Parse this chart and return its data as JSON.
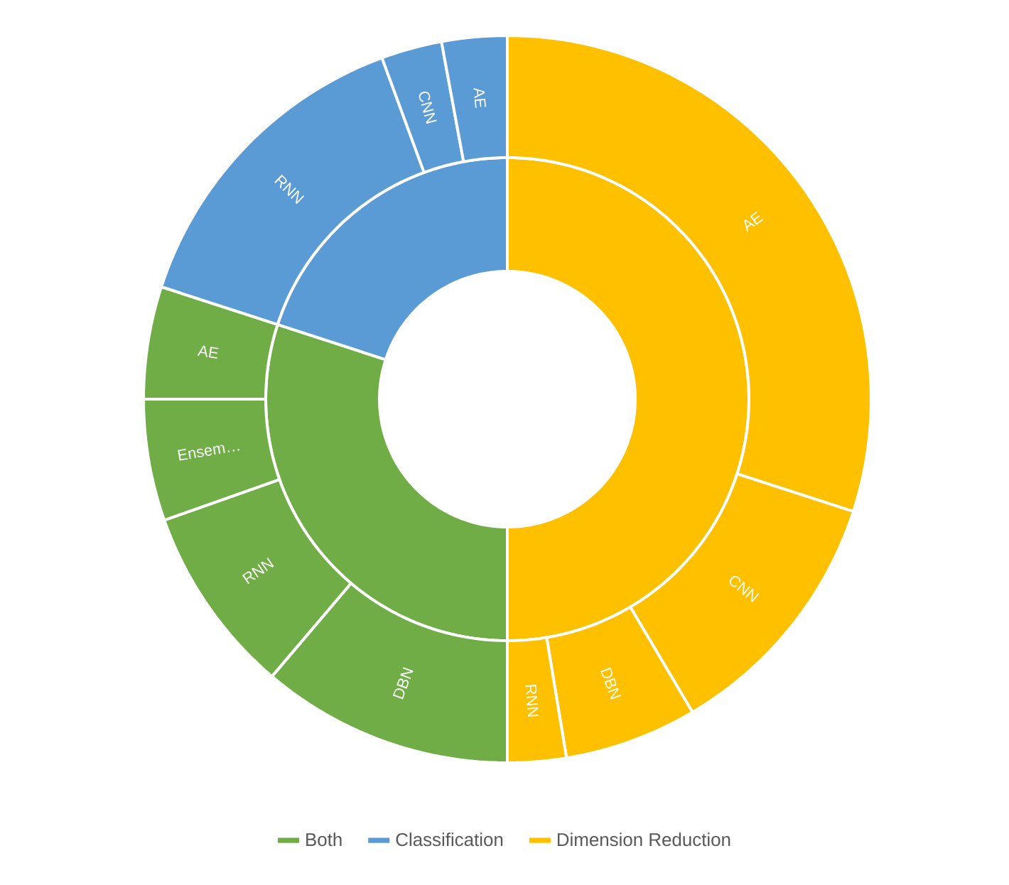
{
  "chart_data": [
    {
      "type": "donut",
      "categories": [
        "Both",
        "Classification",
        "Dimension Reduction"
      ],
      "values": [
        30,
        20,
        50
      ],
      "colors": [
        "#70ad47",
        "#5b9bd5",
        "#ffc000"
      ],
      "legend": "bottom"
    },
    {
      "type": "donut",
      "categories": [
        "DBN",
        "RNN",
        "Ensem…",
        "AE",
        "RNN",
        "CNN",
        "AE",
        "AE",
        "CNN",
        "DBN",
        "RNN"
      ],
      "values": [
        11.2,
        8.4,
        5.4,
        5.0,
        14.4,
        2.7,
        2.9,
        30,
        11.5,
        5.9,
        2.6
      ],
      "colors": [
        "#70ad47",
        "#70ad47",
        "#70ad47",
        "#70ad47",
        "#5b9bd5",
        "#5b9bd5",
        "#5b9bd5",
        "#ffc000",
        "#ffc000",
        "#ffc000",
        "#ffc000"
      ]
    }
  ]
}
